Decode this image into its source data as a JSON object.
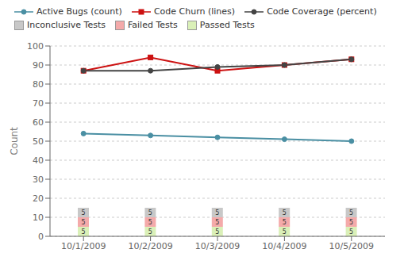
{
  "chart_data": {
    "type": "bar",
    "categories": [
      "10/1/2009",
      "10/2/2009",
      "10/3/2009",
      "10/4/2009",
      "10/5/2009"
    ],
    "ylabel": "Count",
    "ylim": [
      0,
      100
    ],
    "yticks": [
      0,
      10,
      20,
      30,
      40,
      50,
      60,
      70,
      80,
      90,
      100
    ],
    "grid": true,
    "stacked": true,
    "legend": "top",
    "series": [
      {
        "name": "Passed Tests",
        "type": "bar",
        "color": "#daf0b8",
        "data_labels": true,
        "values": [
          5,
          5,
          5,
          5,
          5
        ]
      },
      {
        "name": "Failed Tests",
        "type": "bar",
        "color": "#f4aaaa",
        "data_labels": true,
        "values": [
          5,
          5,
          5,
          5,
          5
        ]
      },
      {
        "name": "Inconclusive Tests",
        "type": "bar",
        "color": "#c8c8c8",
        "data_labels": true,
        "values": [
          5,
          5,
          5,
          5,
          5
        ]
      },
      {
        "name": "Active Bugs (count)",
        "type": "line",
        "color": "#4a8fa3",
        "marker": "circle",
        "values": [
          54,
          53,
          52,
          51,
          50
        ]
      },
      {
        "name": "Code Churn (lines)",
        "type": "line",
        "color": "#cc1111",
        "marker": "square",
        "values": [
          87,
          94,
          87,
          90,
          93
        ]
      },
      {
        "name": "Code Coverage (percent)",
        "type": "line",
        "color": "#444444",
        "marker": "circle",
        "values": [
          87,
          87,
          89,
          90,
          93
        ]
      }
    ]
  }
}
